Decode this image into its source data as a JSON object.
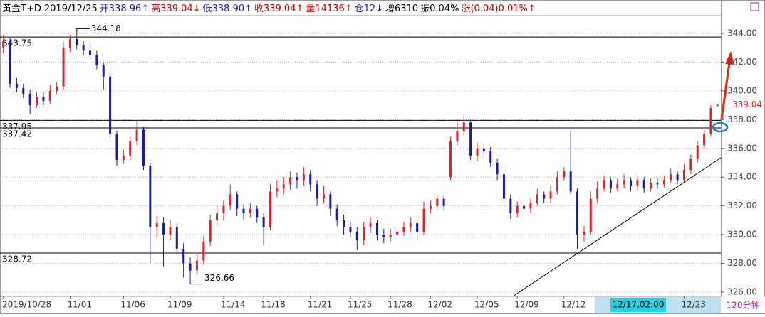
{
  "chart_data": {
    "type": "candlestick",
    "header": [
      {
        "text": "黄金T+D",
        "color": "#000000"
      },
      {
        "text": "2019/12/25",
        "color": "#000000"
      },
      {
        "text": "开338.96↑",
        "color": "#1a1aa6"
      },
      {
        "text": "高339.04↓",
        "color": "#c00000"
      },
      {
        "text": "低338.90↑",
        "color": "#1a1aa6"
      },
      {
        "text": "收339.04↑",
        "color": "#c00000"
      },
      {
        "text": "量14136↑",
        "color": "#c00000"
      },
      {
        "text": "仓12↓",
        "color": "#1a1aa6"
      },
      {
        "text": "增6310",
        "color": "#000000"
      },
      {
        "text": "振0.04%",
        "color": "#000000"
      },
      {
        "text": "涨(0.04)0.01%↑",
        "color": "#c00000"
      }
    ],
    "timeframe": "120分钟",
    "cursor_label": "12/17,02:00",
    "up_color": "#d9262c",
    "down_color": "#1a1aa6",
    "categories": [
      "2019/10/28",
      null,
      null,
      null,
      null,
      null,
      null,
      null,
      null,
      null,
      "11/01",
      null,
      null,
      null,
      null,
      null,
      null,
      null,
      "11/06",
      null,
      null,
      null,
      null,
      null,
      null,
      "11/09",
      null,
      null,
      null,
      null,
      null,
      null,
      null,
      "11/14",
      null,
      null,
      null,
      null,
      null,
      "11/18",
      null,
      null,
      null,
      null,
      null,
      null,
      "11/21",
      null,
      null,
      null,
      null,
      null,
      "11/25",
      null,
      null,
      null,
      null,
      null,
      "11/28",
      null,
      null,
      null,
      null,
      null,
      "12/02",
      null,
      null,
      null,
      null,
      null,
      null,
      "12/05",
      null,
      null,
      null,
      null,
      null,
      "12/09",
      null,
      null,
      null,
      null,
      null,
      null,
      "12/12",
      null,
      null,
      null,
      null,
      null,
      null,
      null,
      null,
      null,
      null,
      null,
      null,
      null,
      null,
      null,
      null,
      null,
      "12/23",
      null,
      null,
      null,
      null,
      null
    ],
    "open": [
      343.0,
      343.5,
      340.5,
      340.2,
      339.8,
      339.0,
      339.6,
      339.3,
      340.0,
      340.3,
      343.0,
      343.6,
      343.2,
      342.8,
      342.5,
      341.8,
      341.0,
      337.0,
      335.2,
      335.5,
      336.5,
      337.3,
      334.8,
      330.5,
      330.8,
      330.0,
      330.5,
      329.0,
      328.0,
      327.5,
      328.2,
      329.5,
      331.0,
      331.5,
      332.0,
      332.8,
      331.8,
      331.5,
      331.8,
      331.2,
      330.5,
      333.0,
      333.2,
      333.5,
      334.0,
      333.8,
      334.2,
      333.5,
      332.5,
      332.8,
      331.8,
      331.0,
      330.5,
      330.2,
      329.6,
      330.5,
      330.8,
      330.0,
      329.8,
      330.0,
      330.2,
      330.5,
      330.8,
      330.2,
      331.8,
      332.0,
      332.5,
      334.0,
      336.5,
      337.2,
      337.8,
      335.5,
      336.0,
      335.8,
      335.0,
      334.2,
      332.5,
      331.5,
      332.0,
      331.8,
      332.2,
      332.8,
      332.5,
      333.0,
      334.0,
      334.4,
      333.0,
      330.0,
      330.2,
      332.5,
      333.2,
      333.8,
      333.2,
      333.5,
      333.8,
      333.4,
      333.8,
      333.2,
      333.6,
      333.5,
      333.8,
      334.2,
      333.8,
      334.5,
      335.3,
      336.2,
      337.0,
      338.96
    ],
    "high": [
      343.9,
      343.7,
      340.9,
      340.5,
      340.1,
      339.9,
      339.9,
      340.4,
      340.6,
      343.4,
      343.9,
      344.18,
      343.5,
      343.3,
      342.8,
      342.0,
      341.2,
      337.2,
      335.9,
      336.8,
      337.9,
      337.5,
      335.0,
      331.3,
      331.2,
      331.0,
      330.8,
      329.4,
      328.4,
      328.8,
      329.9,
      331.4,
      332.0,
      332.4,
      333.5,
      333.0,
      332.1,
      332.2,
      332.0,
      331.5,
      333.5,
      333.8,
      334.0,
      334.4,
      334.3,
      334.7,
      334.5,
      333.8,
      333.4,
      333.0,
      332.1,
      331.4,
      330.9,
      330.5,
      330.9,
      331.2,
      331.0,
      330.4,
      330.4,
      330.5,
      330.9,
      331.2,
      331.0,
      332.3,
      332.4,
      332.8,
      332.7,
      336.8,
      337.9,
      338.3,
      338.0,
      336.4,
      336.3,
      336.1,
      335.3,
      334.5,
      332.8,
      332.3,
      332.2,
      332.5,
      333.2,
      333.0,
      333.4,
      334.4,
      334.7,
      337.2,
      333.2,
      330.6,
      333.0,
      333.7,
      334.1,
      334.0,
      333.9,
      334.2,
      334.0,
      334.1,
      334.0,
      333.9,
      333.9,
      334.1,
      334.6,
      334.4,
      334.9,
      335.6,
      336.5,
      337.3,
      339.0,
      339.04
    ],
    "low": [
      342.6,
      340.2,
      339.9,
      339.5,
      338.4,
      338.8,
      339.0,
      339.1,
      339.8,
      340.1,
      342.7,
      342.9,
      342.5,
      342.2,
      341.5,
      340.1,
      336.8,
      334.8,
      334.9,
      335.2,
      336.2,
      334.5,
      328.0,
      329.8,
      327.8,
      329.6,
      328.6,
      327.0,
      326.66,
      327.2,
      327.9,
      329.2,
      330.7,
      331.0,
      331.7,
      331.3,
      331.0,
      331.2,
      330.8,
      329.3,
      330.3,
      332.6,
      332.8,
      333.1,
      333.2,
      333.4,
      333.0,
      332.0,
      332.2,
      331.3,
      330.6,
      330.0,
      329.8,
      328.9,
      329.3,
      330.1,
      329.6,
      329.4,
      329.5,
      329.7,
      329.9,
      330.2,
      329.6,
      330.0,
      331.5,
      331.7,
      331.7,
      333.8,
      336.2,
      336.9,
      335.2,
      335.1,
      335.4,
      334.7,
      333.8,
      332.1,
      331.1,
      331.2,
      331.4,
      331.5,
      332.0,
      332.2,
      332.2,
      332.8,
      333.8,
      332.8,
      329.0,
      329.5,
      330.0,
      332.2,
      333.0,
      332.9,
      333.0,
      333.2,
      333.0,
      333.1,
      332.9,
      333.0,
      333.2,
      333.3,
      333.6,
      333.5,
      333.6,
      334.2,
      335.0,
      336.0,
      336.8,
      338.9
    ],
    "close": [
      343.5,
      340.5,
      340.2,
      339.8,
      339.0,
      339.6,
      339.3,
      340.0,
      340.3,
      343.0,
      343.6,
      343.2,
      342.8,
      342.5,
      341.8,
      341.0,
      337.0,
      335.2,
      335.5,
      336.5,
      337.3,
      334.8,
      330.5,
      330.8,
      330.0,
      330.5,
      329.0,
      328.0,
      327.5,
      328.2,
      329.5,
      331.0,
      331.5,
      332.0,
      332.8,
      331.8,
      331.5,
      331.8,
      331.2,
      330.5,
      333.0,
      333.2,
      333.5,
      334.0,
      333.8,
      334.2,
      333.5,
      332.5,
      332.8,
      331.8,
      331.0,
      330.5,
      330.2,
      329.6,
      330.5,
      330.8,
      330.0,
      329.8,
      330.0,
      330.2,
      330.5,
      330.8,
      330.2,
      331.8,
      332.0,
      332.5,
      332.0,
      336.5,
      337.2,
      337.8,
      335.5,
      336.0,
      335.8,
      335.0,
      334.2,
      332.5,
      331.5,
      332.0,
      331.8,
      332.2,
      332.8,
      332.5,
      333.0,
      334.0,
      334.4,
      333.0,
      330.0,
      330.2,
      332.5,
      333.2,
      333.8,
      333.2,
      333.5,
      333.8,
      333.4,
      333.8,
      333.2,
      333.6,
      333.5,
      333.8,
      334.2,
      333.8,
      334.5,
      335.3,
      336.2,
      337.0,
      338.8,
      339.04
    ],
    "levels": [
      343.75,
      337.95,
      337.42,
      328.72
    ],
    "high_marker": 344.18,
    "low_marker": 326.66,
    "last_price": 339.04,
    "ylim": [
      325.75,
      345.93
    ],
    "yticks": [
      {
        "value": 326,
        "label": "326.00"
      },
      {
        "value": 328,
        "label": "328.00"
      },
      {
        "value": 330,
        "label": "330.00"
      },
      {
        "value": 332,
        "label": "332.00"
      },
      {
        "value": 334,
        "label": "334.00"
      },
      {
        "value": 336,
        "label": "336.00"
      },
      {
        "value": 338,
        "label": "338.00"
      },
      {
        "value": 340,
        "label": "340.00"
      },
      {
        "value": 342,
        "label": "342.00"
      },
      {
        "value": 344,
        "label": "344.00"
      }
    ],
    "grid": true
  }
}
